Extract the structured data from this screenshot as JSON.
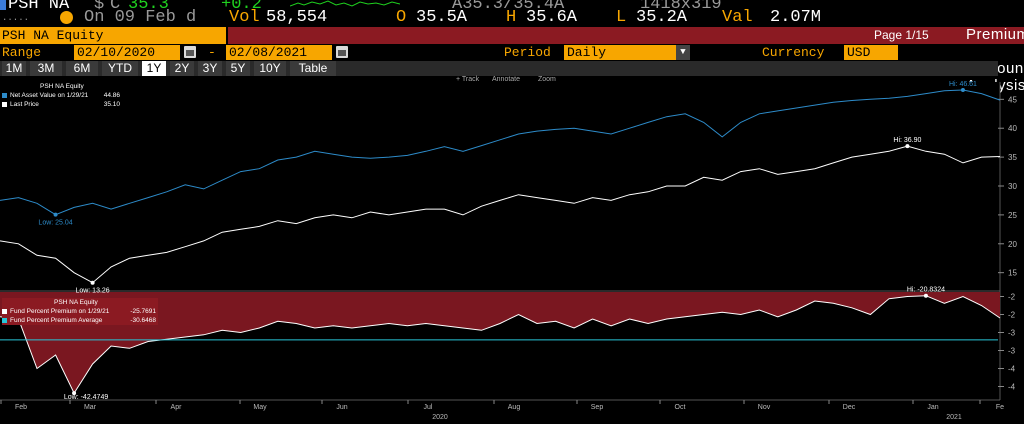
{
  "ticker": {
    "symbol": "PSH NA",
    "dollar": "$",
    "status": "C",
    "last": "35.3",
    "change": "+0.2",
    "bid_ask": "A35.3/35.4A",
    "size": "1418x319",
    "dots": ".....",
    "date_label": "On 09 Feb d",
    "vol_label": "Vol",
    "vol": "58,554",
    "open_label": "O",
    "open": "35.5A",
    "high_label": "H",
    "high": "35.6A",
    "low_label": "L",
    "low": "35.2A",
    "val_label": "Val",
    "val": "2.07M"
  },
  "header": {
    "security": "PSH NA Equity",
    "page": "Page 1/15",
    "title": "Premium / Discount Analysis"
  },
  "params": {
    "range_label": "Range",
    "start": "02/10/2020",
    "dash": "-",
    "end": "02/08/2021",
    "period_label": "Period",
    "period": "Daily",
    "currency_label": "Currency",
    "currency": "USD"
  },
  "tabs": [
    "1M",
    "3M",
    "6M",
    "YTD",
    "1Y",
    "2Y",
    "3Y",
    "5Y",
    "10Y",
    "Table"
  ],
  "active_tab": "1Y",
  "toolbar": {
    "track": "+ Track",
    "annotate": "Annotate",
    "zoom": "Zoom"
  },
  "colors": {
    "accent": "#f7a600",
    "header_red": "#8b1a22",
    "nav_blue": "#2d8bc9",
    "premium_fill": "#7a1720"
  },
  "top_panel": {
    "legend_title": "PSH NA Equity",
    "nav_label": "Net Asset Value on 1/29/21",
    "nav_value": "44.86",
    "price_label": "Last Price",
    "price_value": "35.10",
    "yticks": [
      "45",
      "40",
      "35",
      "30",
      "25",
      "20",
      "15"
    ],
    "annotations": {
      "nav_low": "Low: 25.04",
      "nav_high": "Hi: 46.61",
      "price_low": "Low: 13.26",
      "price_high": "Hi: 36.90"
    }
  },
  "bottom_panel": {
    "legend_title": "PSH NA Equity",
    "prem_label": "Fund Percent Premium on 1/29/21",
    "prem_value": "-25.7691",
    "avg_label": "Fund Percent Premium Average",
    "avg_value": "-30.6468",
    "yticks": [
      "-2",
      "-2",
      "-3",
      "-3",
      "-4",
      "-4"
    ],
    "annotations": {
      "low": "Low: -42.4749",
      "high": "Hi: -20.8324"
    }
  },
  "xaxis": {
    "months": [
      "Feb",
      "Mar",
      "Apr",
      "May",
      "Jun",
      "Jul",
      "Aug",
      "Sep",
      "Oct",
      "Nov",
      "Dec",
      "Jan",
      "Fe"
    ],
    "years": [
      "2020",
      "2021"
    ]
  },
  "chart_data": [
    {
      "type": "line",
      "series": [
        {
          "name": "Net Asset Value",
          "values": [
            27.5,
            28.0,
            27.0,
            25.04,
            26.3,
            27.0,
            26.0,
            27.0,
            28.0,
            29.0,
            30.2,
            29.5,
            31.0,
            32.5,
            33.0,
            34.5,
            35.0,
            36.0,
            35.5,
            35.0,
            34.8,
            35.0,
            35.3,
            36.0,
            36.8,
            36.0,
            37.0,
            38.0,
            39.0,
            39.5,
            39.8,
            40.0,
            39.5,
            39.0,
            40.0,
            41.0,
            42.0,
            42.5,
            41.0,
            38.5,
            41.0,
            42.5,
            43.0,
            43.5,
            44.0,
            44.5,
            44.8,
            45.0,
            45.2,
            45.5,
            46.0,
            46.5,
            46.61,
            46.0,
            44.86
          ]
        },
        {
          "name": "Last Price",
          "values": [
            20.5,
            20.0,
            18.0,
            17.5,
            15.0,
            13.26,
            16.0,
            17.5,
            18.0,
            18.5,
            19.5,
            20.5,
            22.0,
            22.5,
            23.0,
            24.0,
            23.5,
            24.5,
            25.0,
            24.5,
            25.5,
            25.0,
            25.5,
            26.0,
            26.0,
            25.0,
            26.5,
            27.5,
            28.5,
            28.0,
            27.5,
            27.0,
            28.0,
            27.5,
            28.5,
            29.0,
            30.0,
            30.0,
            31.5,
            31.0,
            32.5,
            33.0,
            32.0,
            32.5,
            33.0,
            34.0,
            35.0,
            35.5,
            36.0,
            36.9,
            36.0,
            35.5,
            34.0,
            35.0,
            35.1
          ]
        }
      ],
      "ylim": [
        12,
        48
      ]
    },
    {
      "type": "area",
      "series": [
        {
          "name": "Fund Percent Premium",
          "values": [
            -25.5,
            -26.0,
            -37.0,
            -34.0,
            -42.47,
            -36.0,
            -32.0,
            -32.5,
            -31.0,
            -30.5,
            -30.0,
            -29.5,
            -28.5,
            -29.0,
            -28.0,
            -26.5,
            -27.0,
            -28.0,
            -27.5,
            -28.0,
            -27.5,
            -27.0,
            -27.5,
            -27.0,
            -27.5,
            -28.0,
            -28.5,
            -27.0,
            -25.0,
            -27.0,
            -26.5,
            -28.0,
            -26.0,
            -27.5,
            -26.0,
            -27.0,
            -26.0,
            -25.5,
            -25.0,
            -24.5,
            -25.0,
            -24.0,
            -25.5,
            -24.0,
            -22.0,
            -22.5,
            -23.5,
            -25.0,
            -21.5,
            -21.0,
            -20.83,
            -22.5,
            -21.0,
            -23.0,
            -25.77
          ]
        },
        {
          "name": "Fund Percent Premium Average",
          "values": [
            -30.6468,
            -30.6468
          ]
        }
      ],
      "ylim": [
        -44,
        -20
      ]
    }
  ]
}
